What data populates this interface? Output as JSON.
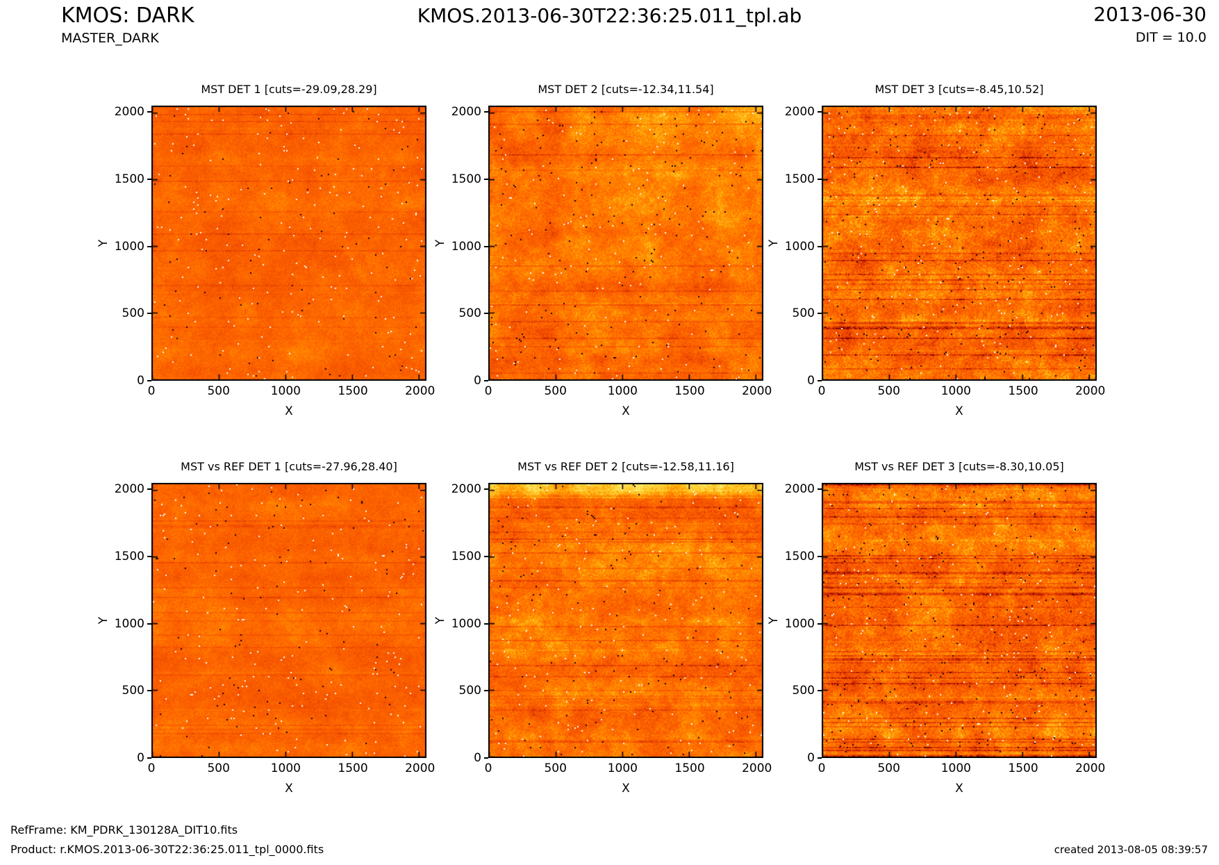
{
  "header": {
    "app_title": "KMOS: DARK",
    "pro_catg": "MASTER_DARK",
    "center_title": "KMOS.2013-06-30T22:36:25.011_tpl.ab",
    "date": "2013-06-30",
    "dit": "DIT = 10.0"
  },
  "footer": {
    "refframe": "RefFrame: KM_PDRK_130128A_DIT10.fits",
    "product": "Product: r.KMOS.2013-06-30T22:36:25.011_tpl_0000.fits",
    "created": "created 2013-08-05 08:39:57"
  },
  "chart_data": {
    "type": "heatmap",
    "layout": "2 rows x 3 columns of detector noise images",
    "colormap": "hot (dark red to orange to yellow to white)",
    "axes": {
      "xlabel": "X",
      "ylabel": "Y",
      "x_ticks": [
        0,
        500,
        1000,
        1500,
        2000
      ],
      "y_ticks": [
        0,
        500,
        1000,
        1500,
        2000
      ],
      "xlim": [
        0,
        2048
      ],
      "ylim": [
        0,
        2048
      ]
    },
    "palette_stops": [
      [
        0.0,
        "#7a0000"
      ],
      [
        0.12,
        "#c22100"
      ],
      [
        0.32,
        "#f24d00"
      ],
      [
        0.5,
        "#ff6a00"
      ],
      [
        0.66,
        "#ff9100"
      ],
      [
        0.82,
        "#ffc420"
      ],
      [
        1.0,
        "#ffee70"
      ]
    ],
    "speckle_colors": {
      "white": "#ffffff",
      "black": "#140000"
    },
    "panels": [
      {
        "title": "MST DET 1 [cuts=-29.09,28.29]",
        "detector": 1,
        "row": 0,
        "col": 0,
        "cuts": [
          -29.09,
          28.29
        ],
        "render": {
          "seed": 11,
          "base": 0.47,
          "amp": 0.09,
          "blotch": 0.07,
          "detail": 0.05,
          "row_band": 0.04,
          "scan_prob": 0.05,
          "scan_strength": 0.09,
          "speckle_white": 0.005,
          "speckle_black": 0.0025
        }
      },
      {
        "title": "MST DET 2 [cuts=-12.34,11.54]",
        "detector": 2,
        "row": 0,
        "col": 1,
        "cuts": [
          -12.34,
          11.54
        ],
        "render": {
          "seed": 22,
          "base": 0.5,
          "amp": 0.13,
          "blotch": 0.12,
          "detail": 0.08,
          "row_band": 0.07,
          "scan_prob": 0.07,
          "scan_strength": 0.13,
          "speckle_white": 0.004,
          "speckle_black": 0.004,
          "v_band": {
            "pos": 0.23,
            "width": 0.05,
            "strength": 0.13
          },
          "corner_glow": 0.2
        }
      },
      {
        "title": "MST DET 3 [cuts=-8.45,10.52]",
        "detector": 3,
        "row": 0,
        "col": 2,
        "cuts": [
          -8.45,
          10.52
        ],
        "render": {
          "seed": 33,
          "base": 0.5,
          "amp": 0.2,
          "blotch": 0.14,
          "detail": 0.1,
          "row_band": 0.1,
          "scan_prob": 0.14,
          "scan_strength": 0.2,
          "speckle_white": 0.005,
          "speckle_black": 0.007
        }
      },
      {
        "title": "MST vs REF DET 1 [cuts=-27.96,28.40]",
        "detector": 1,
        "row": 1,
        "col": 0,
        "cuts": [
          -27.96,
          28.4
        ],
        "render": {
          "seed": 44,
          "base": 0.47,
          "amp": 0.09,
          "blotch": 0.07,
          "detail": 0.05,
          "row_band": 0.05,
          "scan_prob": 0.06,
          "scan_strength": 0.1,
          "speckle_white": 0.005,
          "speckle_black": 0.0025
        }
      },
      {
        "title": "MST vs REF DET 2 [cuts=-12.58,11.16]",
        "detector": 2,
        "row": 1,
        "col": 1,
        "cuts": [
          -12.58,
          11.16
        ],
        "render": {
          "seed": 55,
          "base": 0.53,
          "amp": 0.14,
          "blotch": 0.12,
          "detail": 0.09,
          "row_band": 0.08,
          "scan_prob": 0.09,
          "scan_strength": 0.15,
          "speckle_white": 0.004,
          "speckle_black": 0.004,
          "top_strip": {
            "frac": 0.055,
            "boost": 0.3
          }
        }
      },
      {
        "title": "MST vs REF DET 3 [cuts=-8.30,10.05]",
        "detector": 3,
        "row": 1,
        "col": 2,
        "cuts": [
          -8.3,
          10.05
        ],
        "render": {
          "seed": 66,
          "base": 0.5,
          "amp": 0.19,
          "blotch": 0.14,
          "detail": 0.1,
          "row_band": 0.1,
          "scan_prob": 0.13,
          "scan_strength": 0.19,
          "speckle_white": 0.005,
          "speckle_black": 0.007
        }
      }
    ]
  }
}
